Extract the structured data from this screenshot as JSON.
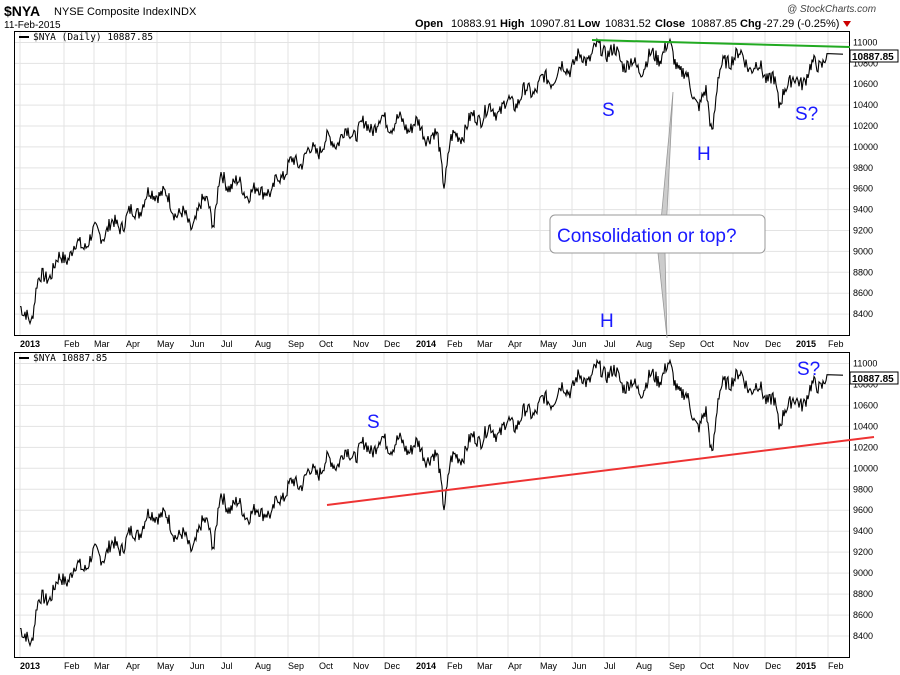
{
  "header": {
    "symbol": "$NYA",
    "name": "NYSE Composite Index",
    "exchange": "INDX",
    "date": "11-Feb-2015",
    "open_label": "Open",
    "open": "10883.91",
    "high_label": "High",
    "high": "10907.81",
    "low_label": "Low",
    "low": "10831.52",
    "close_label": "Close",
    "close": "10887.85",
    "chg_label": "Chg",
    "chg": "-27.29 (-0.25%)",
    "brand": "@ StockCharts.com",
    "colors": {
      "down_arrow": "#cc0000",
      "brand": "#444444"
    }
  },
  "chart_data": [
    {
      "type": "line",
      "legend": "$NYA (Daily) 10887.85",
      "last_value_label": "10887.85",
      "ylim": [
        8200,
        11100
      ],
      "yticks": [
        8400,
        8600,
        8800,
        9000,
        9200,
        9400,
        9600,
        9800,
        10000,
        10200,
        10400,
        10600,
        10800,
        11000
      ],
      "x_tick_labels": [
        "2013",
        "Feb",
        "Mar",
        "Apr",
        "May",
        "Jun",
        "Jul",
        "Aug",
        "Sep",
        "Oct",
        "Nov",
        "Dec",
        "2014",
        "Feb",
        "Mar",
        "Apr",
        "May",
        "Jun",
        "Jul",
        "Aug",
        "Sep",
        "Oct",
        "Nov",
        "Dec",
        "2015",
        "Feb"
      ],
      "grid": true,
      "series": [
        {
          "x": [
            "2013-01",
            "2013-02",
            "2013-03",
            "2013-04",
            "2013-05",
            "2013-06",
            "2013-07",
            "2013-08",
            "2013-09",
            "2013-10",
            "2013-11",
            "2013-12",
            "2014-01",
            "2014-02",
            "2014-03",
            "2014-04",
            "2014-05",
            "2014-06",
            "2014-07",
            "2014-08",
            "2014-09",
            "2014-10",
            "2014-11",
            "2014-12",
            "2015-01",
            "2015-02"
          ],
          "values": [
            8500,
            8950,
            9150,
            9300,
            9600,
            9250,
            9700,
            9550,
            9800,
            10000,
            10150,
            10250,
            10200,
            10000,
            10300,
            10400,
            10600,
            10800,
            10950,
            10750,
            10950,
            10400,
            10900,
            10700,
            10600,
            10888
          ]
        }
      ],
      "trendline": {
        "color": "#22aa22",
        "from": [
          "2014-06",
          11060
        ],
        "to": [
          "2015-02",
          11000
        ]
      },
      "annotations": [
        {
          "text": "S",
          "x": "2014-07",
          "y": 10500
        },
        {
          "text": "H",
          "x": "2014-10",
          "y": 9900
        },
        {
          "text": "S?",
          "x": "2015-01",
          "y": 10420
        },
        {
          "text": "H",
          "x": "2014-07",
          "y": 8300
        }
      ],
      "callout": {
        "text": "Consolidation or top?"
      }
    },
    {
      "type": "line",
      "legend": "$NYA 10887.85",
      "last_value_label": "10887.85",
      "ylim": [
        8200,
        11100
      ],
      "yticks": [
        8400,
        8600,
        8800,
        9000,
        9200,
        9400,
        9600,
        9800,
        10000,
        10200,
        10400,
        10600,
        10800,
        11000
      ],
      "x_tick_labels": [
        "2013",
        "Feb",
        "Mar",
        "Apr",
        "May",
        "Jun",
        "Jul",
        "Aug",
        "Sep",
        "Oct",
        "Nov",
        "Dec",
        "2014",
        "Feb",
        "Mar",
        "Apr",
        "May",
        "Jun",
        "Jul",
        "Aug",
        "Sep",
        "Oct",
        "Nov",
        "Dec",
        "2015",
        "Feb"
      ],
      "grid": true,
      "trendline": {
        "color": "#ee3333",
        "from": [
          "2013-10",
          9600
        ],
        "to": [
          "2015-03",
          10250
        ]
      },
      "annotations": [
        {
          "text": "S",
          "x": "2013-11",
          "y": 10350
        },
        {
          "text": "S?",
          "x": "2015-01",
          "y": 10960
        }
      ]
    }
  ]
}
